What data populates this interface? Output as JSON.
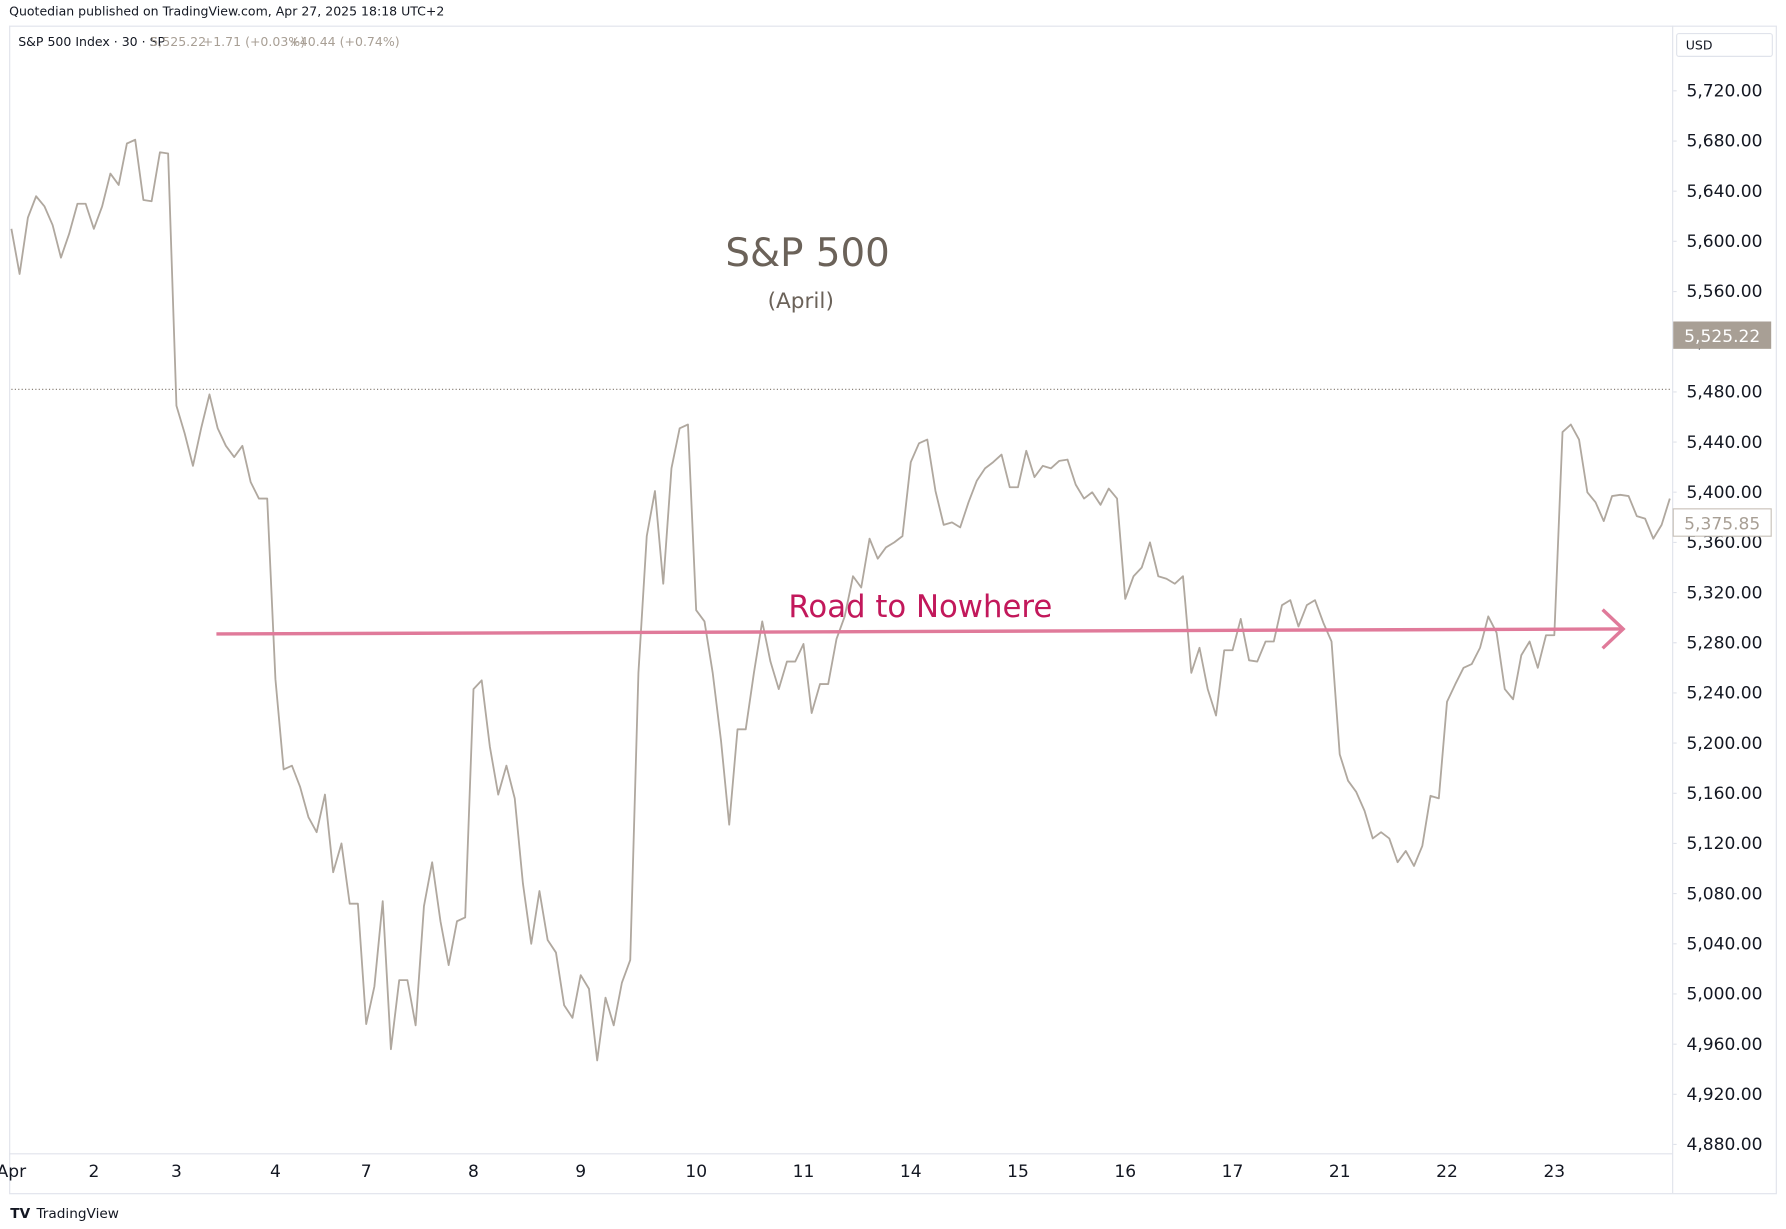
{
  "chart_data": {
    "type": "line",
    "publisher": "Quotedian published on TradingView.com, Apr 27, 2025 18:18 UTC+2",
    "symbol": "S&P 500 Index · 30 · SP",
    "last_price": {
      "value": 5525.22,
      "label": "5,525.22"
    },
    "change": "+1.71 (+0.03%)",
    "change_period": "+40.44 (+0.74%)",
    "currency": "USD",
    "title": "S&P 500",
    "subtitle": "(April)",
    "annotation": "Road to Nowhere",
    "arrow_start": 5287,
    "arrow_end": 5291,
    "arrow_color": "#e07a9a",
    "annotation_color": "#c2185b",
    "previous_close": 5482,
    "current_price": {
      "value": 5375.85,
      "label": "5,375.85"
    },
    "footer": "TradingView",
    "categories": [
      "Apr",
      null,
      null,
      null,
      null,
      null,
      null,
      null,
      null,
      null,
      "2",
      null,
      null,
      null,
      null,
      null,
      null,
      null,
      null,
      null,
      "3",
      null,
      null,
      null,
      null,
      null,
      null,
      null,
      null,
      null,
      null,
      null,
      "4",
      null,
      null,
      null,
      null,
      null,
      null,
      null,
      null,
      null,
      null,
      "7",
      null,
      null,
      null,
      null,
      null,
      null,
      null,
      null,
      null,
      null,
      null,
      null,
      "8",
      null,
      null,
      null,
      null,
      null,
      null,
      null,
      null,
      null,
      null,
      null,
      null,
      "9",
      null,
      null,
      null,
      null,
      null,
      null,
      null,
      null,
      null,
      null,
      null,
      null,
      null,
      "10",
      null,
      null,
      null,
      null,
      null,
      null,
      null,
      null,
      null,
      null,
      null,
      null,
      "11",
      null,
      null,
      null,
      null,
      null,
      null,
      null,
      null,
      null,
      null,
      null,
      null,
      "14",
      null,
      null,
      null,
      null,
      null,
      null,
      null,
      null,
      null,
      null,
      null,
      null,
      "15",
      null,
      null,
      null,
      null,
      null,
      null,
      null,
      null,
      null,
      null,
      null,
      null,
      "16",
      null,
      null,
      null,
      null,
      null,
      null,
      null,
      null,
      null,
      null,
      null,
      null,
      "17",
      null,
      null,
      null,
      null,
      null,
      null,
      null,
      null,
      null,
      null,
      null,
      null,
      "21",
      null,
      null,
      null,
      null,
      null,
      null,
      null,
      null,
      null,
      null,
      null,
      null,
      "22",
      null,
      null,
      null,
      null,
      null,
      null,
      null,
      null,
      null,
      null,
      null,
      null,
      "23",
      null,
      null,
      null,
      null,
      null,
      null,
      null,
      null,
      null,
      null,
      null,
      null,
      null,
      null
    ],
    "series": [
      {
        "name": "S&P 500 Index",
        "color": "#b0a89f",
        "values": [
          5610,
          5574,
          5619,
          5636,
          5628,
          5613,
          5587,
          5606,
          5630,
          5630,
          5610,
          5628,
          5654,
          5645,
          5678,
          5681,
          5633,
          5632,
          5671,
          5670,
          5469,
          5447,
          5421,
          5451,
          5478,
          5451,
          5437,
          5428,
          5437,
          5408,
          5395,
          5395,
          5251,
          5179,
          5182,
          5165,
          5141,
          5129,
          5159,
          5097,
          5120,
          5072,
          5072,
          4976,
          5006,
          5074,
          4956,
          5011,
          5011,
          4975,
          5070,
          5105,
          5058,
          5023,
          5058,
          5061,
          5243,
          5250,
          5197,
          5159,
          5182,
          5156,
          5088,
          5040,
          5082,
          5043,
          5033,
          4991,
          4981,
          5015,
          5004,
          4947,
          4997,
          4975,
          5009,
          5027,
          5256,
          5365,
          5401,
          5327,
          5419,
          5451,
          5454,
          5306,
          5297,
          5256,
          5202,
          5135,
          5211,
          5211,
          5256,
          5297,
          5265,
          5243,
          5265,
          5265,
          5279,
          5224,
          5247,
          5247,
          5283,
          5301,
          5333,
          5324,
          5363,
          5347,
          5356,
          5360,
          5365,
          5424,
          5439,
          5442,
          5401,
          5374,
          5376,
          5372,
          5392,
          5409,
          5419,
          5424,
          5430,
          5404,
          5404,
          5433,
          5412,
          5421,
          5419,
          5425,
          5426,
          5406,
          5395,
          5400,
          5390,
          5403,
          5395,
          5315,
          5333,
          5340,
          5360,
          5333,
          5331,
          5327,
          5333,
          5256,
          5276,
          5243,
          5222,
          5274,
          5274,
          5299,
          5266,
          5265,
          5281,
          5281,
          5310,
          5314,
          5293,
          5310,
          5314,
          5296,
          5281,
          5191,
          5170,
          5161,
          5146,
          5124,
          5129,
          5124,
          5105,
          5114,
          5102,
          5118,
          5158,
          5156,
          5233,
          5247,
          5260,
          5263,
          5276,
          5301,
          5288,
          5243,
          5235,
          5270,
          5281,
          5260,
          5286,
          5286,
          5448,
          5454,
          5442,
          5400,
          5392,
          5377,
          5397,
          5398,
          5397,
          5381,
          5379,
          5363,
          5374,
          5395
        ]
      }
    ],
    "ylim": [
      4873,
      5772
    ],
    "yticks": [
      {
        "value": 4880,
        "label": "4,880.00"
      },
      {
        "value": 4920,
        "label": "4,920.00"
      },
      {
        "value": 4960,
        "label": "4,960.00"
      },
      {
        "value": 5000,
        "label": "5,000.00"
      },
      {
        "value": 5040,
        "label": "5,040.00"
      },
      {
        "value": 5080,
        "label": "5,080.00"
      },
      {
        "value": 5120,
        "label": "5,120.00"
      },
      {
        "value": 5160,
        "label": "5,160.00"
      },
      {
        "value": 5200,
        "label": "5,200.00"
      },
      {
        "value": 5240,
        "label": "5,240.00"
      },
      {
        "value": 5280,
        "label": "5,280.00"
      },
      {
        "value": 5320,
        "label": "5,320.00"
      },
      {
        "value": 5360,
        "label": "5,360.00"
      },
      {
        "value": 5400,
        "label": "5,400.00"
      },
      {
        "value": 5440,
        "label": "5,440.00"
      },
      {
        "value": 5480,
        "label": "5,480.00"
      },
      {
        "value": 5520,
        "label": "5,520.00"
      },
      {
        "value": 5560,
        "label": "5,560.00"
      },
      {
        "value": 5600,
        "label": "5,600.00"
      },
      {
        "value": 5640,
        "label": "5,640.00"
      },
      {
        "value": 5680,
        "label": "5,680.00"
      },
      {
        "value": 5720,
        "label": "5,720.00"
      }
    ],
    "grid": false
  }
}
